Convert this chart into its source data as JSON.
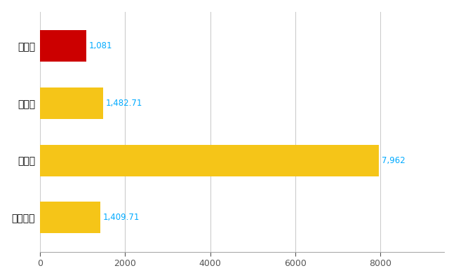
{
  "categories": [
    "大野市",
    "県平均",
    "県最大",
    "全国平均"
  ],
  "values": [
    1081,
    1482.71,
    7962,
    1409.71
  ],
  "labels": [
    "1,081",
    "1,482.71",
    "7,962",
    "1,409.71"
  ],
  "bar_colors": [
    "#cc0000",
    "#f5c518",
    "#f5c518",
    "#f5c518"
  ],
  "xlim": [
    0,
    9500
  ],
  "xticks": [
    0,
    2000,
    4000,
    6000,
    8000
  ],
  "background_color": "#ffffff",
  "grid_color": "#cccccc",
  "label_color": "#00aaff",
  "label_fontsize": 8.5,
  "ytick_fontsize": 10,
  "xtick_fontsize": 9,
  "bar_height": 0.55
}
